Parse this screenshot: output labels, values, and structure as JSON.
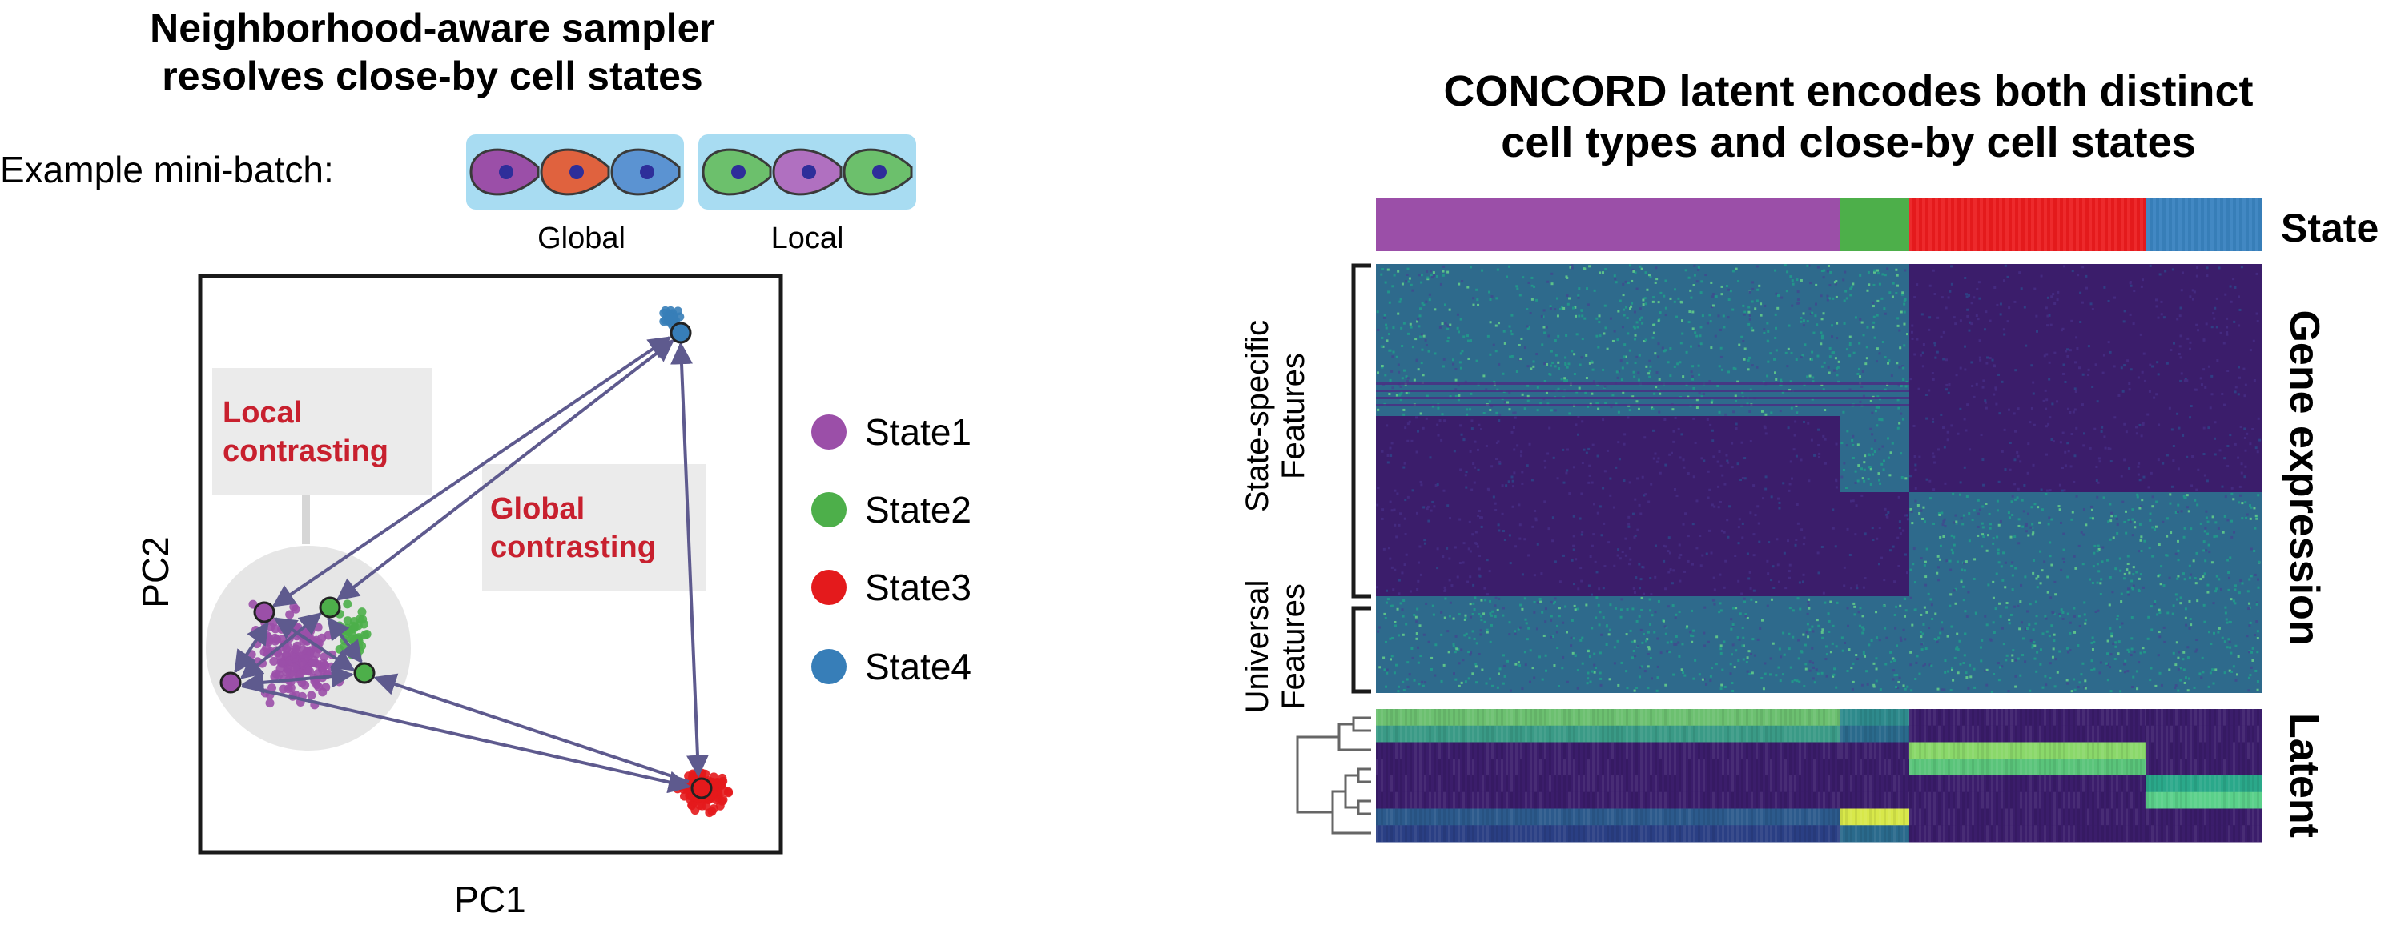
{
  "left_panel": {
    "title_line1": "Neighborhood-aware sampler",
    "title_line2": "resolves close-by cell states",
    "minibatch_label": "Example mini-batch:",
    "batch_global_label": "Global",
    "batch_local_label": "Local",
    "local_contrast_line1": "Local",
    "local_contrast_line2": "contrasting",
    "global_contrast_line1": "Global",
    "global_contrast_line2": "contrasting",
    "x_axis_label": "PC1",
    "y_axis_label": "PC2",
    "legend": [
      {
        "label": "State1",
        "color": "#9b4fa8"
      },
      {
        "label": "State2",
        "color": "#4daf4a"
      },
      {
        "label": "State3",
        "color": "#e41a1c"
      },
      {
        "label": "State4",
        "color": "#377eb8"
      }
    ]
  },
  "right_panel": {
    "title_line1": "CONCORD latent encodes both distinct",
    "title_line2": "cell types and close-by cell states",
    "state_bar_label": "State",
    "gene_expression_label": "Gene expression",
    "latent_label": "Latent",
    "state_specific_line1": "State-specific",
    "state_specific_line2": "Features",
    "universal_line1": "Universal",
    "universal_line2": "Features"
  },
  "colors": {
    "state1": "#9b4fa8",
    "state2": "#4daf4a",
    "state3": "#e41a1c",
    "state4": "#377eb8",
    "arrow": "#5e5a8e",
    "annotation_red": "#c8202e",
    "batch_box": "#a8dcf2",
    "heat_low": "#3b1d6b",
    "heat_mid": "#2a7f8e",
    "heat_high": "#d8e84a"
  }
}
